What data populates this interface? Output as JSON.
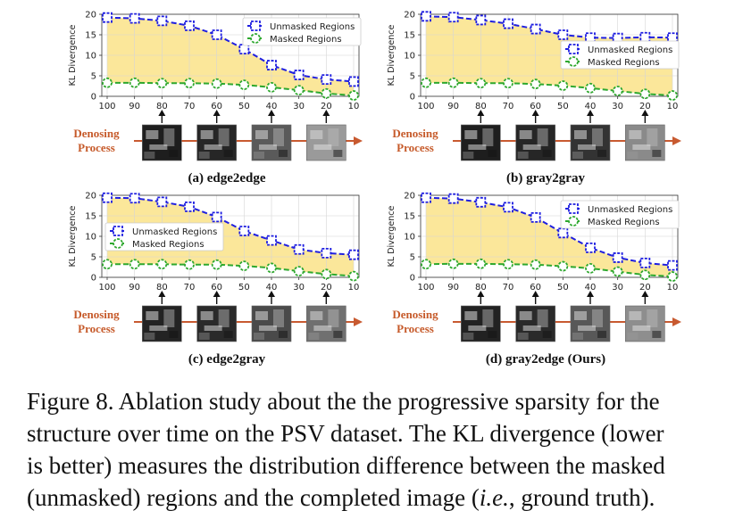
{
  "figure": {
    "axis": {
      "ylabel": "KL Divergence",
      "x_ticks": [
        "100",
        "90",
        "80",
        "70",
        "60",
        "50",
        "40",
        "30",
        "20",
        "10"
      ],
      "y_ticks": [
        "0",
        "5",
        "10",
        "15",
        "20"
      ],
      "ylim": [
        0,
        20
      ]
    },
    "process": {
      "line1": "Denosing",
      "line2": "Process"
    },
    "legend_labels": {
      "unmasked": "Unmasked Regions",
      "masked": "Masked Regions"
    }
  },
  "chart_data": [
    {
      "type": "line",
      "title": "(a) edge2edge",
      "xlabel": "",
      "ylabel": "KL Divergence",
      "categories": [
        "100",
        "90",
        "80",
        "70",
        "60",
        "50",
        "40",
        "30",
        "20",
        "10"
      ],
      "ylim": [
        0,
        20
      ],
      "grid": true,
      "legend": "top-right",
      "series": [
        {
          "name": "Unmasked Regions",
          "color": "#1f1fe0",
          "values": [
            19.2,
            19.0,
            18.4,
            17.2,
            15.0,
            11.5,
            7.6,
            5.2,
            4.1,
            3.6
          ]
        },
        {
          "name": "Masked Regions",
          "color": "#2ea82e",
          "values": [
            3.3,
            3.3,
            3.2,
            3.2,
            3.1,
            2.8,
            2.2,
            1.5,
            0.7,
            0.2
          ]
        }
      ]
    },
    {
      "type": "line",
      "title": "(b) gray2gray",
      "xlabel": "",
      "ylabel": "KL Divergence",
      "categories": [
        "100",
        "90",
        "80",
        "70",
        "60",
        "50",
        "40",
        "30",
        "20",
        "10"
      ],
      "ylim": [
        0,
        20
      ],
      "grid": true,
      "legend": "right",
      "series": [
        {
          "name": "Unmasked Regions",
          "color": "#1f1fe0",
          "values": [
            19.5,
            19.3,
            18.6,
            17.7,
            16.4,
            15.0,
            14.3,
            14.2,
            14.4,
            14.3
          ]
        },
        {
          "name": "Masked Regions",
          "color": "#2ea82e",
          "values": [
            3.3,
            3.3,
            3.2,
            3.2,
            3.0,
            2.6,
            2.0,
            1.3,
            0.6,
            0.2
          ]
        }
      ]
    },
    {
      "type": "line",
      "title": "(c) edge2gray",
      "xlabel": "",
      "ylabel": "KL Divergence",
      "categories": [
        "100",
        "90",
        "80",
        "70",
        "60",
        "50",
        "40",
        "30",
        "20",
        "10"
      ],
      "ylim": [
        0,
        20
      ],
      "grid": true,
      "legend": "left",
      "series": [
        {
          "name": "Unmasked Regions",
          "color": "#1f1fe0",
          "values": [
            19.4,
            19.3,
            18.4,
            17.2,
            14.7,
            11.3,
            9.0,
            6.8,
            5.9,
            5.5
          ]
        },
        {
          "name": "Masked Regions",
          "color": "#2ea82e",
          "values": [
            3.2,
            3.2,
            3.2,
            3.1,
            3.1,
            2.8,
            2.3,
            1.5,
            0.8,
            0.3
          ]
        }
      ]
    },
    {
      "type": "line",
      "title": "(d) gray2edge (Ours)",
      "xlabel": "",
      "ylabel": "KL Divergence",
      "categories": [
        "100",
        "90",
        "80",
        "70",
        "60",
        "50",
        "40",
        "30",
        "20",
        "10"
      ],
      "ylim": [
        0,
        20
      ],
      "grid": true,
      "legend": "top-right",
      "series": [
        {
          "name": "Unmasked Regions",
          "color": "#1f1fe0",
          "values": [
            19.4,
            19.2,
            18.3,
            17.1,
            14.6,
            10.8,
            7.2,
            4.8,
            3.5,
            2.9
          ]
        },
        {
          "name": "Masked Regions",
          "color": "#2ea82e",
          "values": [
            3.2,
            3.3,
            3.3,
            3.2,
            3.1,
            2.7,
            2.2,
            1.4,
            0.6,
            0.2
          ]
        }
      ]
    }
  ],
  "thumbs": [
    {
      "shades": [
        "#1e1e1e",
        "#262626",
        "#5a5a5a",
        "#9a9a9a"
      ]
    },
    {
      "shades": [
        "#1e1e1e",
        "#262626",
        "#333333",
        "#8a8a8a"
      ]
    },
    {
      "shades": [
        "#232323",
        "#2a2a2a",
        "#4a4a4a",
        "#707070"
      ]
    },
    {
      "shades": [
        "#222222",
        "#2a2a2a",
        "#585858",
        "#8e8e8e"
      ]
    }
  ],
  "caption": {
    "line1": "Figure 8. Ablation study about the the progressive sparsity for the",
    "line2": "structure over time on the PSV dataset. The KL divergence (lower",
    "line3": "is better) measures the distribution difference between the masked",
    "line4_a": "(unmasked) regions and the completed image (",
    "line4_em": "i.e.",
    "line4_b": ", ground truth)."
  }
}
